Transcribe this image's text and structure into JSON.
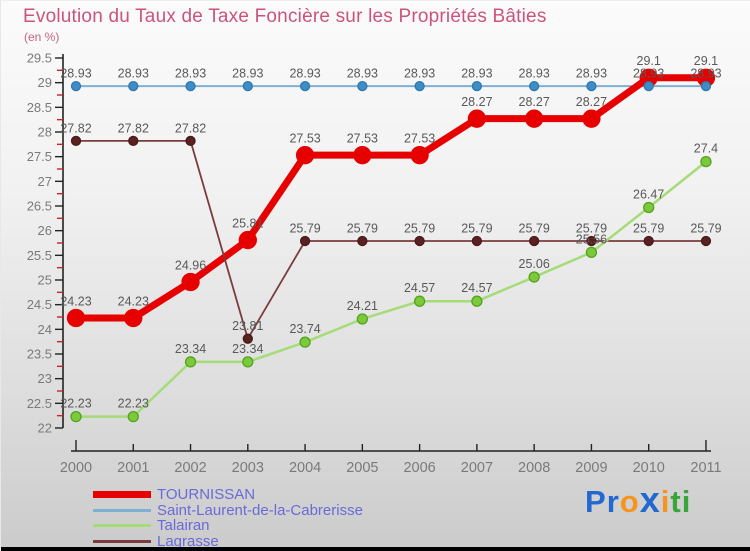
{
  "title": "Evolution du Taux de Taxe Foncière sur les Propriétés Bâties",
  "subtitle": "(en %)",
  "colors": {
    "title": "#cc537e",
    "axis": "#222222",
    "minor_tick": "#cc2222",
    "tick_label": "#7a7a7a",
    "data_label": "#595959",
    "legend_text": "#6a6ad8",
    "background_top": "#fbfbfb",
    "background_bottom": "#cbcbcb"
  },
  "chart_data": {
    "type": "line",
    "title": "Evolution du Taux de Taxe Foncière sur les Propriétés Bâties",
    "unit_label": "(en %)",
    "x": [
      2000,
      2001,
      2002,
      2003,
      2004,
      2005,
      2006,
      2007,
      2008,
      2009,
      2010,
      2011
    ],
    "ylim": [
      22,
      29.5
    ],
    "ytick_step": 0.5,
    "yminor_step": 0.25,
    "grid": false,
    "legend_position": "bottom-left",
    "series": [
      {
        "name": "TOURNISSAN",
        "color": "#e60000",
        "marker_color": "#e60000",
        "marker_stroke": "#e60000",
        "line_width": 7,
        "marker_radius": 8.5,
        "legend_thickness": 7,
        "values": [
          24.23,
          24.23,
          24.96,
          25.81,
          27.53,
          27.53,
          27.53,
          28.27,
          28.27,
          28.27,
          29.1,
          29.1
        ],
        "labels": [
          "24.23",
          "24.23",
          "24.96",
          "25.81",
          "27.53",
          "27.53",
          "27.53",
          "28.27",
          "28.27",
          "28.27",
          "29.1",
          "29.1"
        ]
      },
      {
        "name": "Saint-Laurent-de-la-Cabrerisse",
        "color": "#7fb0d4",
        "marker_color": "#3d8dc6",
        "marker_stroke": "#2f77ad",
        "line_width": 2,
        "marker_radius": 4.5,
        "legend_thickness": 3,
        "values": [
          28.93,
          28.93,
          28.93,
          28.93,
          28.93,
          28.93,
          28.93,
          28.93,
          28.93,
          28.93,
          28.93,
          28.93
        ],
        "labels": [
          "28.93",
          "28.93",
          "28.93",
          "28.93",
          "28.93",
          "28.93",
          "28.93",
          "28.93",
          "28.93",
          "28.93",
          "28.93",
          "28.93"
        ]
      },
      {
        "name": "Talairan",
        "color": "#a4dc78",
        "marker_color": "#7cc93c",
        "marker_stroke": "#55a21e",
        "line_width": 2.5,
        "marker_radius": 5,
        "legend_thickness": 3,
        "values": [
          22.23,
          22.23,
          23.34,
          23.34,
          23.74,
          24.21,
          24.57,
          24.57,
          25.06,
          25.56,
          26.47,
          27.4
        ],
        "labels": [
          "22.23",
          "22.23",
          "23.34",
          "23.34",
          "23.74",
          "24.21",
          "24.57",
          "24.57",
          "25.06",
          "25.56",
          "26.47",
          "27.4"
        ]
      },
      {
        "name": "Lagrasse",
        "color": "#7a3c3c",
        "marker_color": "#5a2121",
        "marker_stroke": "#4a1a1a",
        "line_width": 1.8,
        "marker_radius": 4.5,
        "legend_thickness": 3,
        "values": [
          27.82,
          27.82,
          27.82,
          23.81,
          25.79,
          25.79,
          25.79,
          25.79,
          25.79,
          25.79,
          25.79,
          25.79
        ],
        "labels": [
          "27.82",
          "27.82",
          "27.82",
          "23.81",
          "25.79",
          "25.79",
          "25.79",
          "25.79",
          "25.79",
          "25.79",
          "25.79",
          "25.79"
        ]
      }
    ]
  },
  "legend": {
    "items": [
      {
        "label": "TOURNISSAN"
      },
      {
        "label": "Saint-Laurent-de-la-Cabrerisse"
      },
      {
        "label": "Talairan"
      },
      {
        "label": "Lagrasse"
      }
    ]
  },
  "logo": {
    "name": "Proxiti",
    "letters": [
      {
        "char": "P",
        "color": "#2268cf",
        "big": false
      },
      {
        "char": "r",
        "color": "#2268cf",
        "big": false
      },
      {
        "char": "o",
        "color": "#f7941d",
        "big": false
      },
      {
        "char": "x",
        "color": "#2268cf",
        "big": true
      },
      {
        "char": "i",
        "color": "#f7941d",
        "big": false
      },
      {
        "char": "t",
        "color": "#3aa63a",
        "big": false
      },
      {
        "char": "i",
        "color": "#3aa63a",
        "big": false
      }
    ]
  }
}
